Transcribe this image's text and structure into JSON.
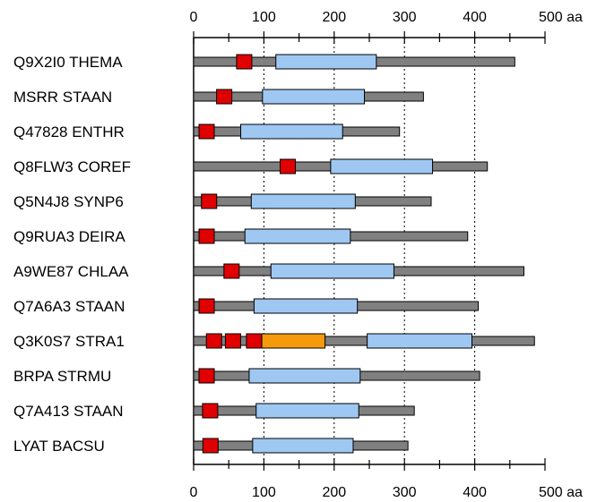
{
  "axis": {
    "ticks": [
      0,
      100,
      200,
      300,
      400,
      500
    ],
    "tick_labels": [
      "0",
      "100",
      "200",
      "300",
      "400",
      "500 aa"
    ],
    "max": 500,
    "minor_step": 50,
    "dotted_lines_at": [
      100,
      200,
      300,
      400
    ]
  },
  "colors": {
    "backbone": "#808080",
    "domain_blue": "#9ec8f2",
    "domain_red": "#e00000",
    "domain_orange": "#f59a0c",
    "outline": "#000000"
  },
  "chart_data": {
    "type": "domain-architecture",
    "x_unit": "aa",
    "xlim": [
      0,
      500
    ],
    "proteins": [
      {
        "name": "Q9X2I0 THEMA",
        "length": 457,
        "domains": [
          {
            "type": "red",
            "start": 62,
            "end": 82
          },
          {
            "type": "blue",
            "start": 117,
            "end": 260
          }
        ]
      },
      {
        "name": "MSRR STAAN",
        "length": 327,
        "domains": [
          {
            "type": "red",
            "start": 32,
            "end": 55
          },
          {
            "type": "blue",
            "start": 98,
            "end": 243
          }
        ]
      },
      {
        "name": "Q47828 ENTHR",
        "length": 293,
        "domains": [
          {
            "type": "red",
            "start": 8,
            "end": 29
          },
          {
            "type": "blue",
            "start": 67,
            "end": 212
          }
        ]
      },
      {
        "name": "Q8FLW3 COREF",
        "length": 418,
        "domains": [
          {
            "type": "red",
            "start": 123,
            "end": 145
          },
          {
            "type": "blue",
            "start": 195,
            "end": 340
          }
        ]
      },
      {
        "name": "Q5N4J8 SYNP6",
        "length": 338,
        "domains": [
          {
            "type": "red",
            "start": 12,
            "end": 32
          },
          {
            "type": "blue",
            "start": 82,
            "end": 230
          }
        ]
      },
      {
        "name": "Q9RUA3 DEIRA",
        "length": 390,
        "domains": [
          {
            "type": "red",
            "start": 8,
            "end": 29
          },
          {
            "type": "blue",
            "start": 73,
            "end": 223
          }
        ]
      },
      {
        "name": "A9WE87 CHLAA",
        "length": 470,
        "domains": [
          {
            "type": "red",
            "start": 43,
            "end": 65
          },
          {
            "type": "blue",
            "start": 110,
            "end": 285
          }
        ]
      },
      {
        "name": "Q7A6A3 STAAN",
        "length": 405,
        "domains": [
          {
            "type": "red",
            "start": 8,
            "end": 29
          },
          {
            "type": "blue",
            "start": 86,
            "end": 233
          }
        ]
      },
      {
        "name": "Q3K0S7 STRA1",
        "length": 485,
        "domains": [
          {
            "type": "red",
            "start": 18,
            "end": 40
          },
          {
            "type": "red",
            "start": 45,
            "end": 67
          },
          {
            "type": "red",
            "start": 75,
            "end": 97
          },
          {
            "type": "orange",
            "start": 97,
            "end": 187
          },
          {
            "type": "blue",
            "start": 247,
            "end": 396
          }
        ]
      },
      {
        "name": "BRPA STRMU",
        "length": 407,
        "domains": [
          {
            "type": "red",
            "start": 8,
            "end": 29
          },
          {
            "type": "blue",
            "start": 79,
            "end": 237
          }
        ]
      },
      {
        "name": "Q7A413 STAAN",
        "length": 314,
        "domains": [
          {
            "type": "red",
            "start": 13,
            "end": 34
          },
          {
            "type": "blue",
            "start": 89,
            "end": 235
          }
        ]
      },
      {
        "name": "LYAT BACSU",
        "length": 305,
        "domains": [
          {
            "type": "red",
            "start": 13,
            "end": 35
          },
          {
            "type": "blue",
            "start": 84,
            "end": 227
          }
        ]
      }
    ]
  }
}
